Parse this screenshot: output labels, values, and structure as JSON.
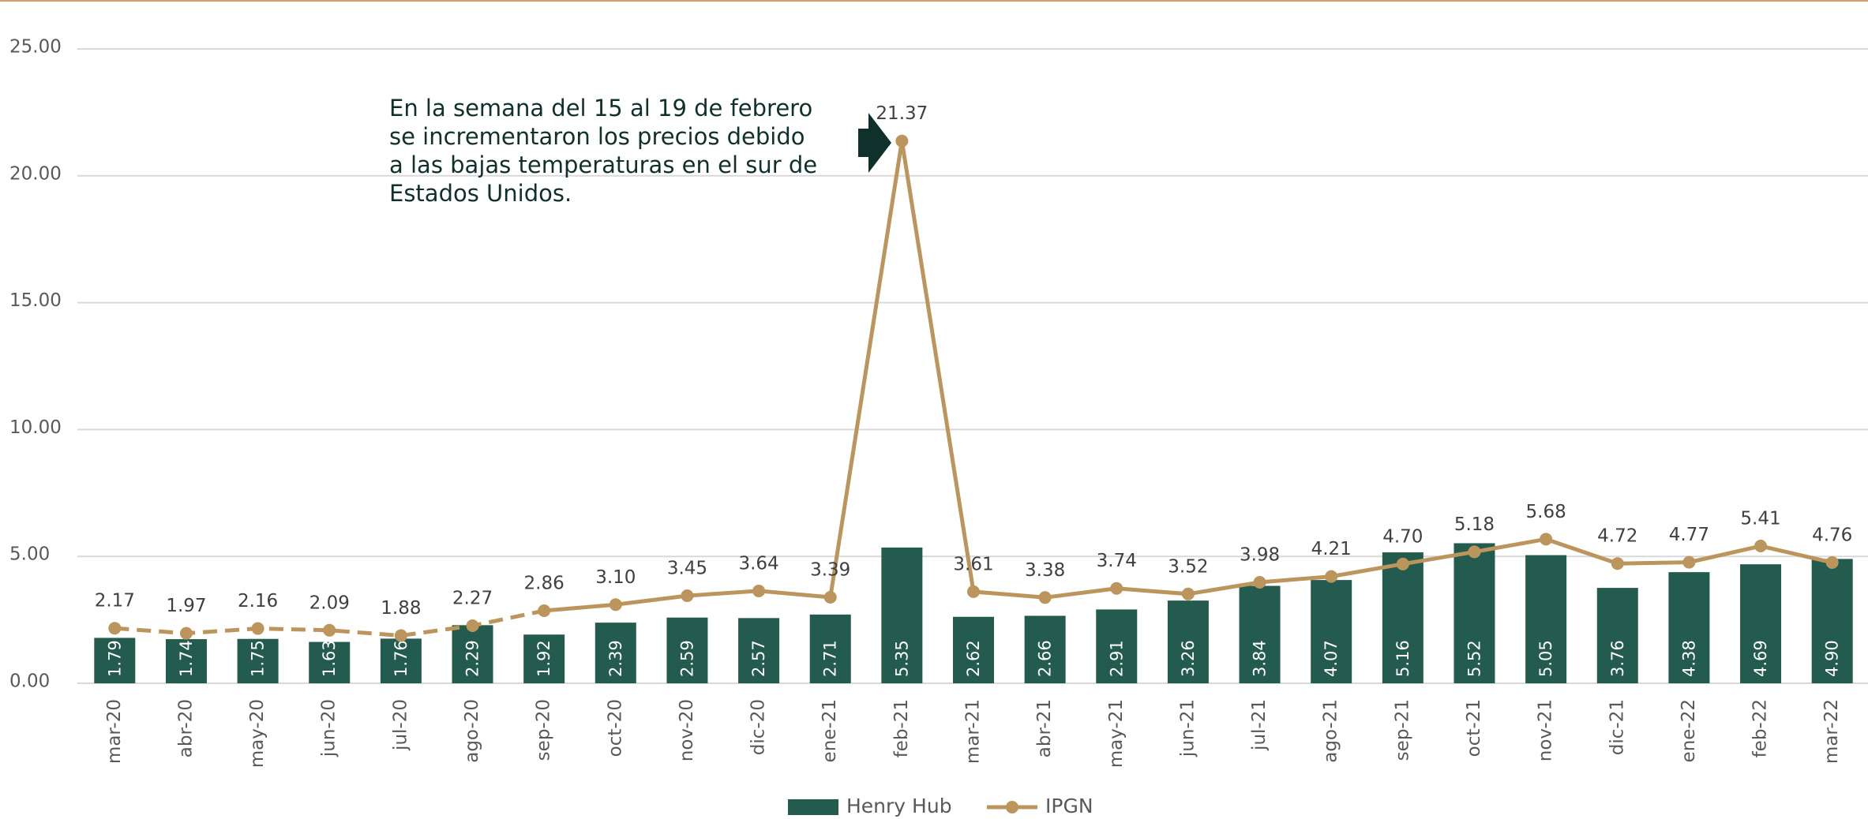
{
  "chart_data": {
    "type": "bar_line",
    "categories": [
      "mar-20",
      "abr-20",
      "may-20",
      "jun-20",
      "jul-20",
      "ago-20",
      "sep-20",
      "oct-20",
      "nov-20",
      "dic-20",
      "ene-21",
      "feb-21",
      "mar-21",
      "abr-21",
      "may-21",
      "jun-21",
      "jul-21",
      "ago-21",
      "sep-21",
      "oct-21",
      "nov-21",
      "dic-21",
      "ene-22",
      "feb-22",
      "mar-22"
    ],
    "series": [
      {
        "name": "Henry Hub",
        "type": "bar",
        "color": "#235b4e",
        "values": [
          1.79,
          1.74,
          1.75,
          1.63,
          1.76,
          2.29,
          1.92,
          2.39,
          2.59,
          2.57,
          2.71,
          5.35,
          2.62,
          2.66,
          2.91,
          3.26,
          3.84,
          4.07,
          5.16,
          5.52,
          5.05,
          3.76,
          4.38,
          4.69,
          4.9
        ],
        "value_labels": [
          "1.79",
          "1.74",
          "1.75",
          "1.63",
          "1.76",
          "2.29",
          "1.92",
          "2.39",
          "2.59",
          "2.57",
          "2.71",
          "5.35",
          "2.62",
          "2.66",
          "2.91",
          "3.26",
          "3.84",
          "4.07",
          "5.16",
          "5.52",
          "5.05",
          "3.76",
          "4.38",
          "4.69",
          "4.90"
        ]
      },
      {
        "name": "IPGN",
        "type": "line",
        "color": "#bc955c",
        "values": [
          2.17,
          1.97,
          2.16,
          2.09,
          1.88,
          2.27,
          2.86,
          3.1,
          3.45,
          3.64,
          3.39,
          21.37,
          3.61,
          3.38,
          3.74,
          3.52,
          3.98,
          4.21,
          4.7,
          5.18,
          5.68,
          4.72,
          4.77,
          5.41,
          4.76
        ],
        "value_labels": [
          "2.17",
          "1.97",
          "2.16",
          "2.09",
          "1.88",
          "2.27",
          "2.86",
          "3.10",
          "3.45",
          "3.64",
          "3.39",
          "21.37",
          "3.61",
          "3.38",
          "3.74",
          "3.52",
          "3.98",
          "4.21",
          "4.70",
          "5.18",
          "5.68",
          "4.72",
          "4.77",
          "5.41",
          "4.76"
        ]
      }
    ],
    "ylim": [
      0,
      25
    ],
    "yticks": [
      {
        "value": 0,
        "label": "0.00"
      },
      {
        "value": 5,
        "label": "5.00"
      },
      {
        "value": 10,
        "label": "10.00"
      },
      {
        "value": 15,
        "label": "15.00"
      },
      {
        "value": 20,
        "label": "20.00"
      },
      {
        "value": 25,
        "label": "25.00"
      }
    ],
    "grid": true,
    "legend": "bottom",
    "annotation": [
      "En la semana del 15 al 19 de febrero",
      "se incrementaron los precios debido",
      "a las bajas temperaturas en el sur de",
      "Estados Unidos."
    ]
  }
}
